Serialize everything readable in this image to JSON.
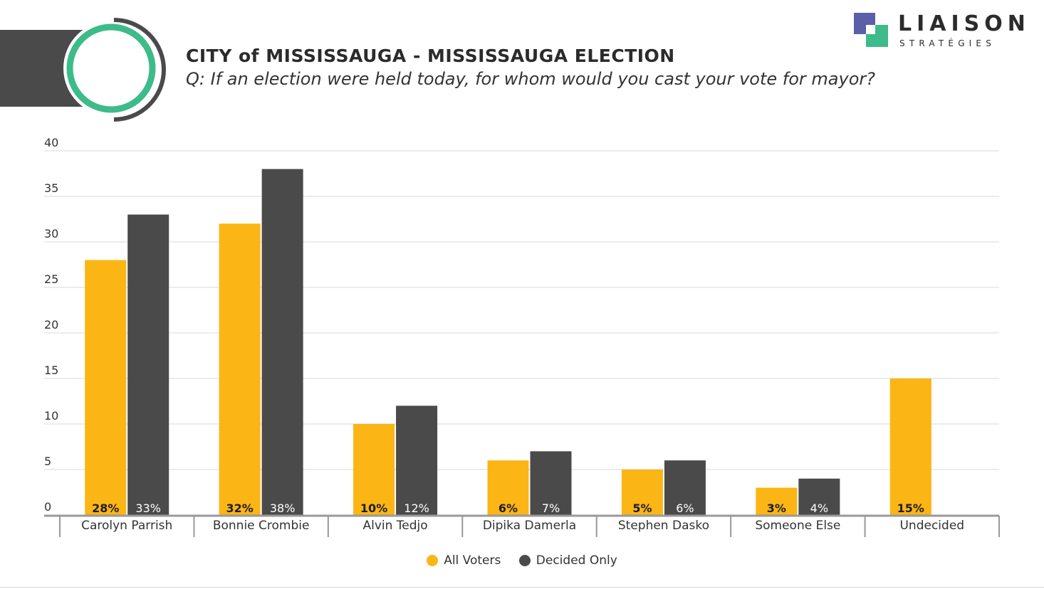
{
  "header": {
    "title": "CITY of MISSISSAUGA - MISSISSAUGA ELECTION",
    "subtitle": "Q: If an election were held today, for whom would you cast your vote for mayor?"
  },
  "logo": {
    "wordmark": "LIAISON",
    "tagline": "STRATÉGIES",
    "colors": {
      "blue": "#5b5fa8",
      "green": "#3dbb8a",
      "dark": "#2b2b2b"
    }
  },
  "colors": {
    "all_voters": "#fbb514",
    "decided_only": "#4a4a4a",
    "emblem_ring": "#3dbb8a",
    "emblem_arc": "#4a4a4a"
  },
  "chart_data": {
    "type": "bar",
    "categories": [
      "Carolyn Parrish",
      "Bonnie Crombie",
      "Alvin Tedjo",
      "Dipika Damerla",
      "Stephen Dasko",
      "Someone Else",
      "Undecided"
    ],
    "series": [
      {
        "name": "All Voters",
        "values": [
          28,
          32,
          10,
          6,
          5,
          3,
          15
        ],
        "labels": [
          "28%",
          "32%",
          "10%",
          "6%",
          "5%",
          "3%",
          "15%"
        ]
      },
      {
        "name": "Decided Only",
        "values": [
          33,
          38,
          12,
          7,
          6,
          4,
          null
        ],
        "labels": [
          "33%",
          "38%",
          "12%",
          "7%",
          "6%",
          "4%",
          null
        ]
      }
    ],
    "yticks": [
      "0",
      "5",
      "10",
      "15",
      "20",
      "25",
      "30",
      "35",
      "40"
    ],
    "ylim": [
      0,
      40
    ],
    "grid": true,
    "legend": "bottom-center"
  }
}
